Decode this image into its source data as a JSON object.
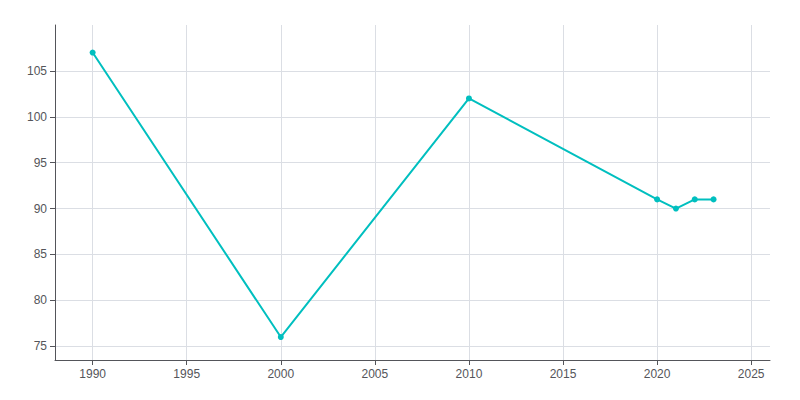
{
  "chart_data": {
    "type": "line",
    "x": [
      1990,
      2000,
      2010,
      2020,
      2021,
      2022,
      2023
    ],
    "values": [
      107,
      76,
      102,
      91,
      90,
      91,
      91
    ],
    "color": "#00BFBF",
    "marker": "circle",
    "xlim": [
      1988,
      2026
    ],
    "ylim": [
      73.5,
      110
    ],
    "xticks": [
      1990,
      1995,
      2000,
      2005,
      2010,
      2015,
      2020,
      2025
    ],
    "yticks": [
      75,
      80,
      85,
      90,
      95,
      100,
      105
    ],
    "grid": true
  }
}
